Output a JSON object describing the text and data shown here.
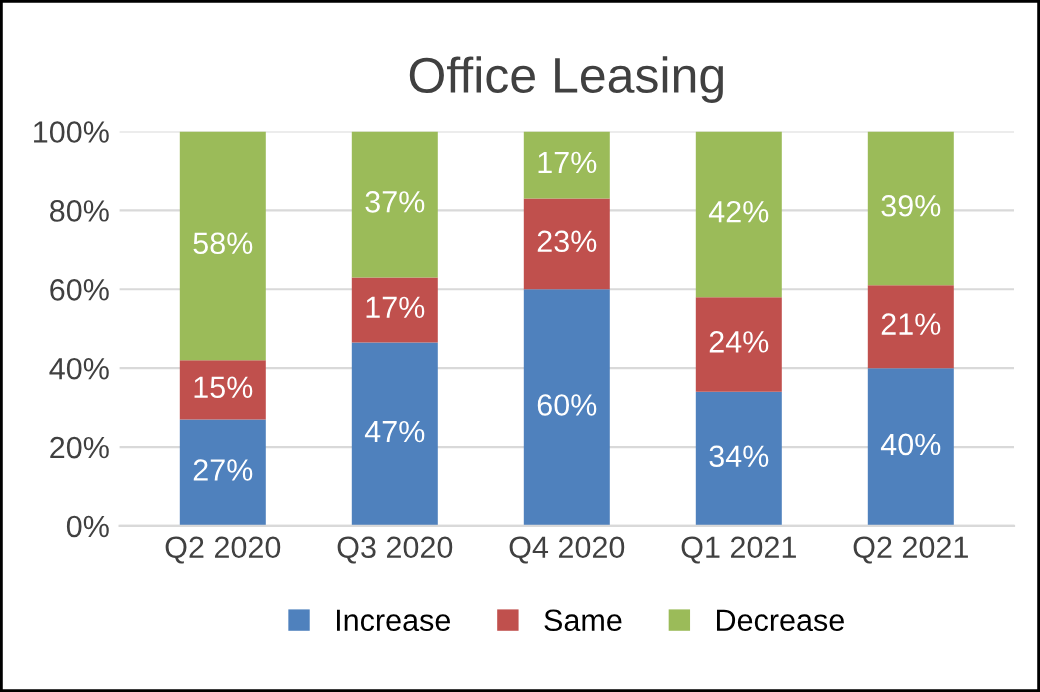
{
  "chart_data": {
    "type": "bar",
    "title": "Office Leasing",
    "stacked": true,
    "categories": [
      "Q2 2020",
      "Q3 2020",
      "Q4 2020",
      "Q1 2021",
      "Q2 2021"
    ],
    "series": [
      {
        "name": "Increase",
        "color": "#4f81bd",
        "values": [
          27,
          46.5,
          60,
          34,
          40
        ],
        "value_labels": [
          "27%",
          "47%",
          "60%",
          "34%",
          "40%"
        ]
      },
      {
        "name": "Same",
        "color": "#c0504d",
        "values": [
          15,
          16.5,
          23,
          24,
          21
        ],
        "value_labels": [
          "15%",
          "17%",
          "23%",
          "24%",
          "21%"
        ]
      },
      {
        "name": "Decrease",
        "color": "#9bbb59",
        "values": [
          58,
          37,
          17,
          42,
          39
        ],
        "value_labels": [
          "58%",
          "37%",
          "17%",
          "42%",
          "39%"
        ]
      }
    ],
    "ylim": [
      0,
      100
    ],
    "yticks": [
      {
        "value": 0,
        "label": "0%"
      },
      {
        "value": 20,
        "label": "20%"
      },
      {
        "value": 40,
        "label": "40%"
      },
      {
        "value": 60,
        "label": "60%"
      },
      {
        "value": 80,
        "label": "80%"
      },
      {
        "value": 100,
        "label": "100%"
      }
    ],
    "grid": "y",
    "legend": "bottom"
  }
}
